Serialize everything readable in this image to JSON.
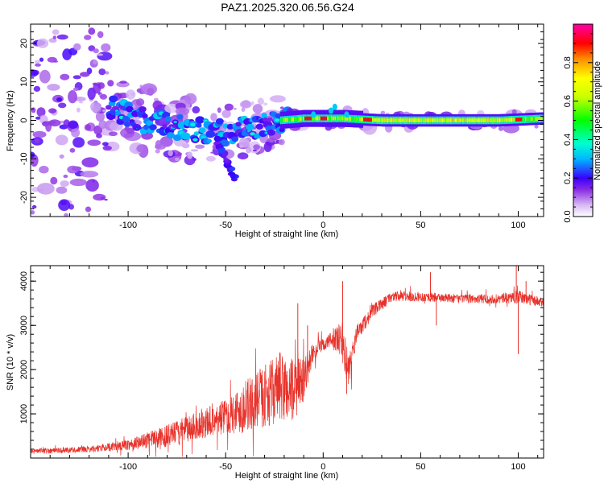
{
  "figure_title": "PAZ1.2025.320.06.56.G24",
  "chart_data": [
    {
      "type": "heatmap",
      "title": "PAZ1.2025.320.06.56.G24",
      "xlabel": "Height of straight line (km)",
      "ylabel": "Frequency (Hz)",
      "xlim": [
        -150,
        113
      ],
      "ylim": [
        -25,
        25
      ],
      "xticks": [
        -100,
        -50,
        0,
        50,
        100
      ],
      "xtick_labels": [
        "-100",
        "-50",
        "0",
        "50",
        "100"
      ],
      "yticks": [
        -20,
        -10,
        0,
        10,
        20
      ],
      "ytick_labels": [
        "-20",
        "-10",
        "0",
        "10",
        "20"
      ],
      "colorbar": {
        "label": "Normalized spectral amplitude",
        "range": [
          0,
          1
        ],
        "ticks": [
          0.0,
          0.2,
          0.4,
          0.6,
          0.8
        ],
        "tick_labels": [
          "0.0",
          "0.2",
          "0.4",
          "0.6",
          "0.8"
        ],
        "colormap": "rainbow"
      },
      "ridge_frequency": [
        {
          "x": -108,
          "f": 3.0
        },
        {
          "x": -95,
          "f": 0.5
        },
        {
          "x": -80,
          "f": -1.5
        },
        {
          "x": -65,
          "f": -2.5
        },
        {
          "x": -50,
          "f": -3.0
        },
        {
          "x": -35,
          "f": -2.0
        },
        {
          "x": -22,
          "f": 0.0
        },
        {
          "x": -10,
          "f": 0.5
        },
        {
          "x": 0,
          "f": 0.5
        },
        {
          "x": 10,
          "f": 0.5
        },
        {
          "x": 30,
          "f": 0.0
        },
        {
          "x": 60,
          "f": 0.0
        },
        {
          "x": 90,
          "f": 0.0
        },
        {
          "x": 113,
          "f": 0.5
        }
      ],
      "secondary_branch": [
        {
          "x": -55,
          "f": -5.0
        },
        {
          "x": -50,
          "f": -10.0
        },
        {
          "x": -45,
          "f": -15.0
        }
      ]
    },
    {
      "type": "line",
      "xlabel": "Height of straight line (km)",
      "ylabel": "SNR (10 * v/v)",
      "xlim": [
        -150,
        113
      ],
      "ylim": [
        0,
        4350
      ],
      "xticks": [
        -100,
        -50,
        0,
        50,
        100
      ],
      "xtick_labels": [
        "-100",
        "-50",
        "0",
        "50",
        "100"
      ],
      "yticks": [
        1000,
        2000,
        3000,
        4000
      ],
      "ytick_labels": [
        "1000",
        "2000",
        "3000",
        "4000"
      ],
      "color": "#e8322b",
      "envelope": [
        {
          "x": -150,
          "y": 150,
          "n": 60
        },
        {
          "x": -120,
          "y": 200,
          "n": 70
        },
        {
          "x": -100,
          "y": 300,
          "n": 120
        },
        {
          "x": -90,
          "y": 400,
          "n": 180
        },
        {
          "x": -80,
          "y": 500,
          "n": 250
        },
        {
          "x": -70,
          "y": 650,
          "n": 300
        },
        {
          "x": -60,
          "y": 800,
          "n": 350
        },
        {
          "x": -50,
          "y": 950,
          "n": 400
        },
        {
          "x": -40,
          "y": 1150,
          "n": 600
        },
        {
          "x": -30,
          "y": 1400,
          "n": 700
        },
        {
          "x": -22,
          "y": 1600,
          "n": 800
        },
        {
          "x": -15,
          "y": 1500,
          "n": 750
        },
        {
          "x": -10,
          "y": 1800,
          "n": 500
        },
        {
          "x": -5,
          "y": 2400,
          "n": 200
        },
        {
          "x": 0,
          "y": 2550,
          "n": 150
        },
        {
          "x": 5,
          "y": 2700,
          "n": 200
        },
        {
          "x": 10,
          "y": 2600,
          "n": 500
        },
        {
          "x": 13,
          "y": 1900,
          "n": 400
        },
        {
          "x": 17,
          "y": 2800,
          "n": 200
        },
        {
          "x": 25,
          "y": 3300,
          "n": 150
        },
        {
          "x": 35,
          "y": 3650,
          "n": 120
        },
        {
          "x": 50,
          "y": 3650,
          "n": 110
        },
        {
          "x": 70,
          "y": 3600,
          "n": 100
        },
        {
          "x": 90,
          "y": 3600,
          "n": 110
        },
        {
          "x": 100,
          "y": 3650,
          "n": 150
        },
        {
          "x": 113,
          "y": 3500,
          "n": 110
        }
      ],
      "spikes": [
        {
          "x": -13,
          "y": 3500
        },
        {
          "x": -8,
          "y": 3000
        },
        {
          "x": 10,
          "y": 4000
        },
        {
          "x": 12,
          "y": 1450
        },
        {
          "x": 55,
          "y": 4200
        },
        {
          "x": 58,
          "y": 3000
        },
        {
          "x": 99,
          "y": 4400
        },
        {
          "x": 100,
          "y": 2350
        },
        {
          "x": 104,
          "y": 4000
        }
      ]
    }
  ]
}
